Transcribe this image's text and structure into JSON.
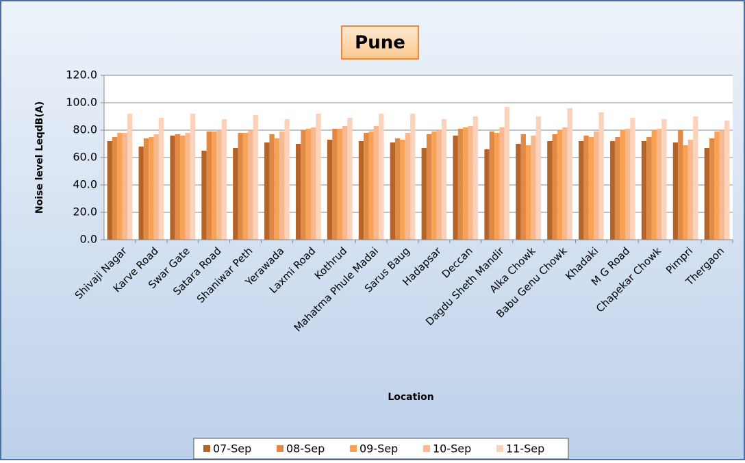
{
  "chart_data": {
    "type": "bar",
    "title": "Pune",
    "x_label": "Location",
    "y_label": "Noise level LeqdB(A)",
    "categories": [
      "Shivaji Nagar",
      "Karve Road",
      "Swar Gate",
      "Satara Road",
      "Shaniwar Peth",
      "Yerawada",
      "Laxmi Road",
      "Kothrud",
      "Mahatma Phule Madai",
      "Sarus Baug",
      "Hadapsar",
      "Deccan",
      "Dagdu Sheth Mandir",
      "Alka Chowk",
      "Babu Genu Chowk",
      "Khadaki",
      "M G Road",
      "Chapekar Chowk",
      "Pimpri",
      "Thergaon"
    ],
    "series": [
      {
        "name": "07-Sep",
        "color": "#b5642a",
        "values": [
          72,
          68,
          76,
          65,
          67,
          71,
          70,
          73,
          72,
          71,
          67,
          76,
          66,
          70,
          72,
          72,
          72,
          72,
          71,
          67
        ]
      },
      {
        "name": "08-Sep",
        "color": "#e08a45",
        "values": [
          75,
          74,
          77,
          79,
          78,
          77,
          80,
          81,
          78,
          74,
          77,
          81,
          79,
          77,
          77,
          76,
          75,
          75,
          80,
          74
        ]
      },
      {
        "name": "09-Sep",
        "color": "#f9a155",
        "values": [
          78,
          75,
          76,
          79,
          78,
          74,
          81,
          81,
          79,
          73,
          79,
          82,
          78,
          69,
          80,
          75,
          80,
          80,
          69,
          79
        ]
      },
      {
        "name": "10-Sep",
        "color": "#f8b890",
        "values": [
          78,
          77,
          78,
          80,
          80,
          79,
          82,
          83,
          83,
          78,
          80,
          83,
          82,
          76,
          82,
          79,
          81,
          81,
          73,
          80
        ]
      },
      {
        "name": "11-Sep",
        "color": "#fbd3bd",
        "values": [
          92,
          89,
          92,
          88,
          91,
          88,
          92,
          89,
          92,
          92,
          88,
          90,
          97,
          90,
          96,
          93,
          89,
          88,
          90,
          87
        ]
      }
    ],
    "ylim": [
      0,
      120
    ],
    "yticks": [
      {
        "value": 0,
        "label": "0.0"
      },
      {
        "value": 20,
        "label": "20.0"
      },
      {
        "value": 40,
        "label": "40.0"
      },
      {
        "value": 60,
        "label": "60.0"
      },
      {
        "value": 80,
        "label": "80.0"
      },
      {
        "value": 100,
        "label": "100.0"
      },
      {
        "value": 120,
        "label": "120.0"
      }
    ],
    "grid": true
  }
}
